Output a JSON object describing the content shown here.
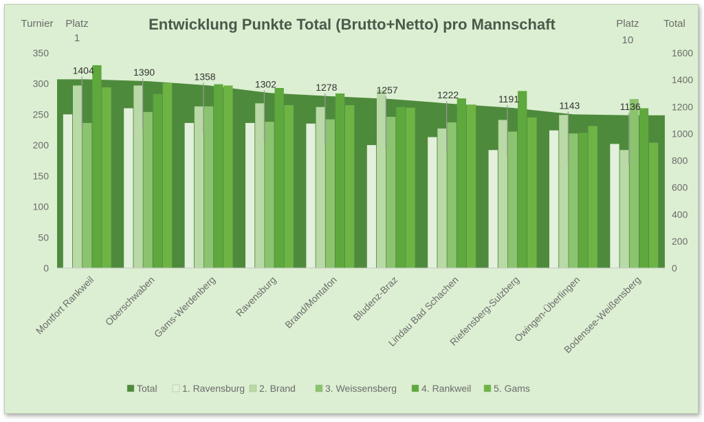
{
  "chart_data": {
    "type": "bar",
    "title": "Entwicklung Punkte Total (Brutto+Netto) pro Mannschaft",
    "corner_labels": {
      "left": "Turnier",
      "first_place_title": "Platz",
      "first_place_value": "1",
      "last_place_title": "Platz",
      "last_place_value": "10",
      "right": "Total"
    },
    "categories": [
      "Montfort Rankweil",
      "Oberschwaben",
      "Gams-Werdenberg",
      "Ravensburg",
      "Brand/Montafon",
      "Bludenz-Braz",
      "Lindau Bad Schachen",
      "Riefensberg-Sulzberg",
      "Owingen-Überlingen",
      "Bodensee-Weißensberg"
    ],
    "left_axis": {
      "min": 0,
      "max": 350,
      "ticks": [
        0,
        50,
        100,
        150,
        200,
        250,
        300,
        350
      ]
    },
    "right_axis": {
      "min": 0,
      "max": 1600,
      "ticks": [
        0,
        200,
        400,
        600,
        800,
        1000,
        1200,
        1400,
        1600
      ]
    },
    "total": {
      "name": "Total",
      "axis": "right",
      "type": "area",
      "color": "#4e8a3c",
      "values": [
        1404,
        1390,
        1358,
        1302,
        1278,
        1257,
        1222,
        1191,
        1143,
        1136
      ]
    },
    "series": [
      {
        "name": "1. Ravensburg",
        "color": "#e3f0dc",
        "values": [
          250,
          260,
          236,
          236,
          235,
          200,
          213,
          192,
          224,
          202
        ]
      },
      {
        "name": "2. Brand",
        "color": "#b9d9a6",
        "values": [
          297,
          297,
          263,
          268,
          262,
          290,
          227,
          241,
          249,
          192
        ]
      },
      {
        "name": "3. Weissensberg",
        "color": "#8cc36f",
        "values": [
          236,
          254,
          263,
          238,
          242,
          246,
          237,
          222,
          219,
          275
        ]
      },
      {
        "name": "4. Rankweil",
        "color": "#5ea83d",
        "values": [
          330,
          283,
          299,
          293,
          284,
          262,
          276,
          288,
          220,
          260
        ]
      },
      {
        "name": "5. Gams",
        "color": "#6eb445",
        "values": [
          294,
          301,
          297,
          265,
          265,
          261,
          266,
          245,
          231,
          204
        ]
      }
    ],
    "legend_position": "bottom",
    "grid": false
  }
}
